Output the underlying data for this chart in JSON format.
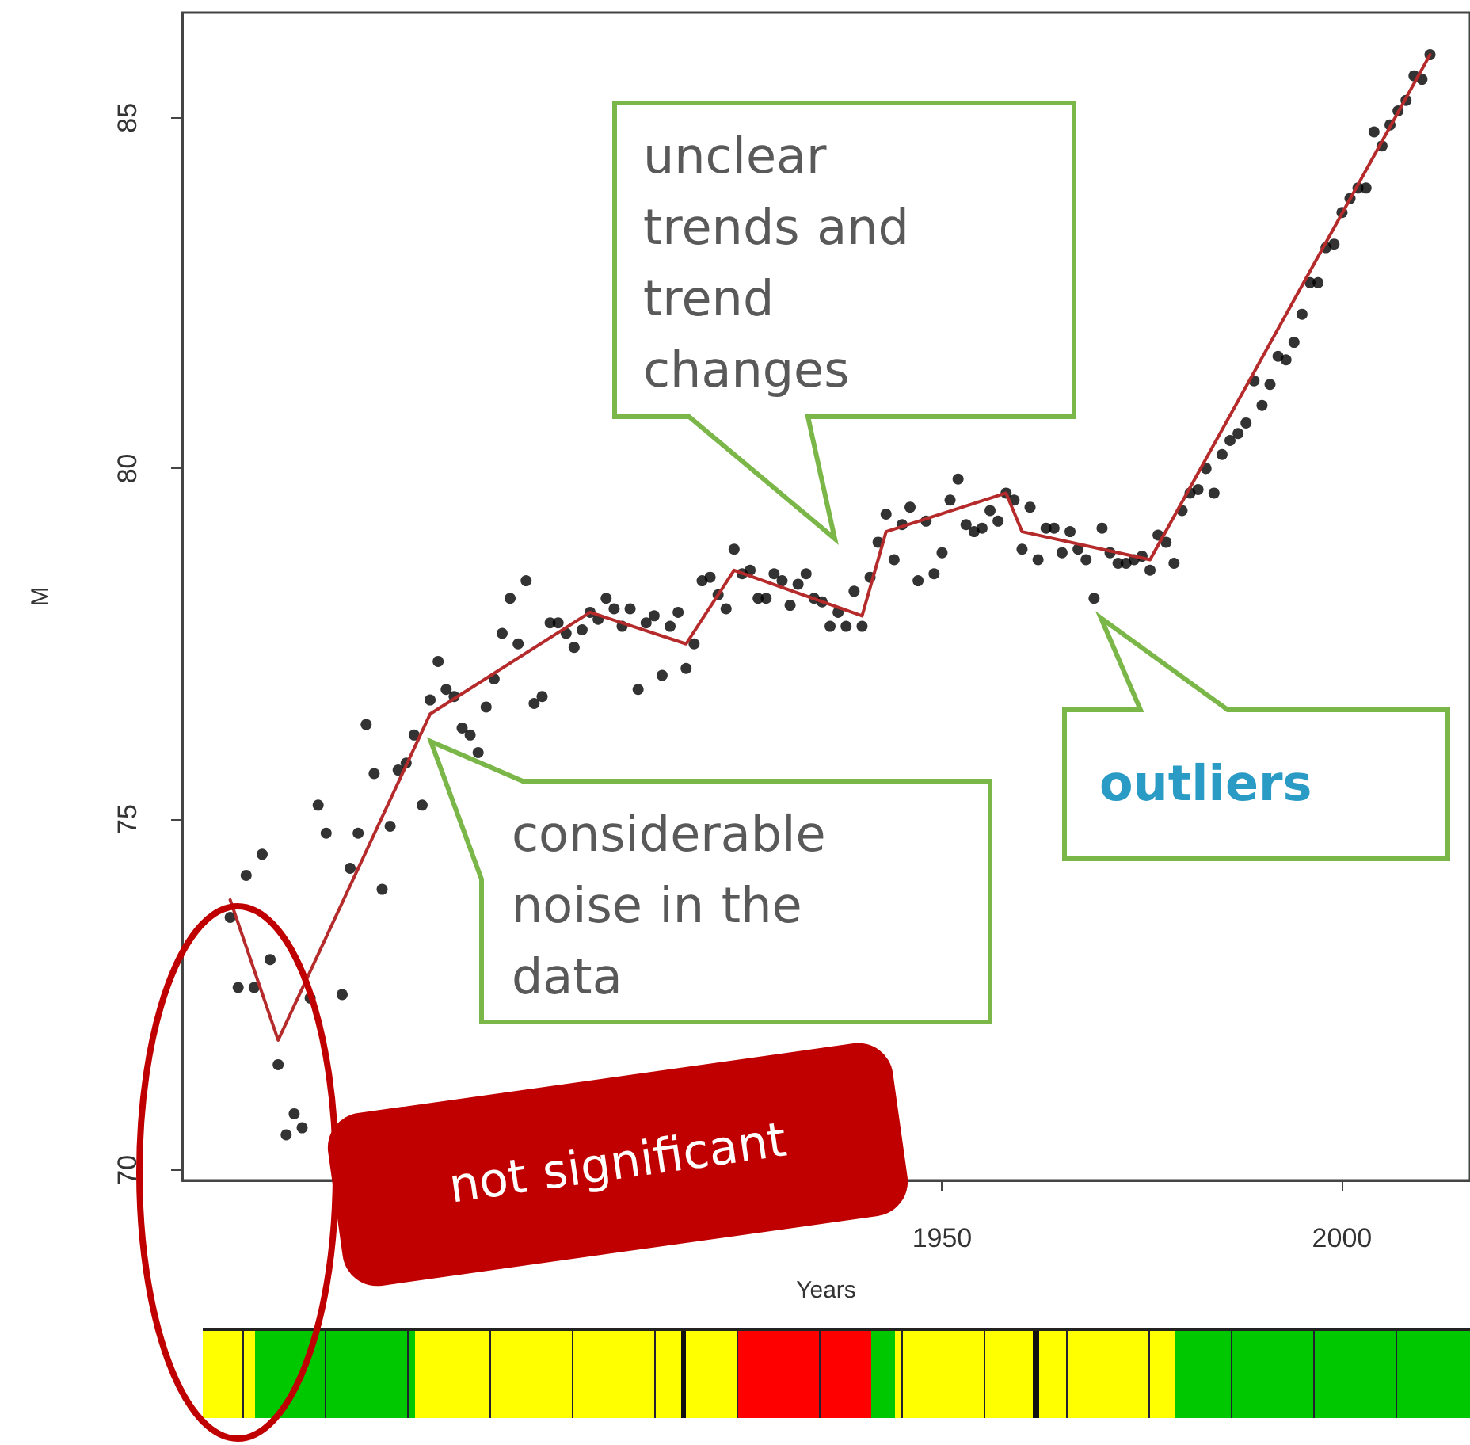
{
  "chart_data": {
    "type": "scatter",
    "xlabel": "Years",
    "ylabel": "M",
    "xlim": [
      1855,
      2016
    ],
    "xticks": [
      1950,
      2000
    ],
    "ylim": [
      69.85,
      86.5
    ],
    "yticks": [
      70,
      75,
      80,
      85
    ],
    "grid": false,
    "marker": "circle",
    "series": [
      {
        "color": "#000000",
        "x": [
          1861,
          1862,
          1863,
          1864,
          1865,
          1866,
          1867,
          1868,
          1869,
          1870,
          1871,
          1872,
          1873,
          1875,
          1876,
          1877,
          1878,
          1879,
          1880,
          1881,
          1882,
          1883,
          1884,
          1885,
          1886,
          1887,
          1888,
          1889,
          1890,
          1891,
          1892,
          1893,
          1894,
          1895,
          1896,
          1897,
          1898,
          1899,
          1900,
          1901,
          1902,
          1903,
          1904,
          1905,
          1906,
          1907,
          1908,
          1909,
          1910,
          1911,
          1912,
          1913,
          1914,
          1915,
          1916,
          1917,
          1918,
          1919,
          1920,
          1921,
          1922,
          1923,
          1924,
          1925,
          1926,
          1927,
          1928,
          1929,
          1930,
          1931,
          1932,
          1933,
          1934,
          1935,
          1936,
          1937,
          1938,
          1939,
          1940,
          1941,
          1942,
          1943,
          1944,
          1945,
          1946,
          1947,
          1948,
          1949,
          1950,
          1951,
          1952,
          1953,
          1954,
          1955,
          1956,
          1957,
          1958,
          1959,
          1960,
          1961,
          1962,
          1963,
          1964,
          1965,
          1966,
          1967,
          1968,
          1969,
          1970,
          1971,
          1972,
          1973,
          1974,
          1975,
          1976,
          1977,
          1978,
          1979,
          1980,
          1981,
          1982,
          1983,
          1984,
          1985,
          1986,
          1987,
          1988,
          1989,
          1990,
          1991,
          1992,
          1993,
          1994,
          1995,
          1996,
          1997,
          1998,
          1999,
          2000,
          2001,
          2002,
          2003,
          2004,
          2005,
          2006,
          2007,
          2008,
          2009,
          2010,
          2011
        ],
        "values": [
          73.6,
          72.6,
          74.2,
          72.6,
          74.5,
          73.0,
          71.5,
          70.5,
          70.8,
          70.6,
          72.45,
          75.2,
          74.8,
          72.5,
          74.3,
          74.8,
          76.35,
          75.65,
          74.0,
          74.9,
          75.7,
          75.8,
          76.2,
          75.2,
          76.7,
          77.25,
          76.85,
          76.75,
          76.3,
          76.2,
          75.95,
          76.6,
          77.0,
          77.65,
          78.15,
          77.5,
          78.4,
          76.65,
          76.75,
          77.8,
          77.8,
          77.65,
          77.45,
          77.7,
          77.95,
          77.85,
          78.15,
          78.0,
          77.75,
          78.0,
          76.85,
          77.8,
          77.9,
          77.05,
          77.75,
          77.95,
          77.15,
          77.5,
          78.4,
          78.45,
          78.2,
          78.0,
          78.85,
          78.5,
          78.55,
          78.15,
          78.15,
          78.5,
          78.4,
          78.05,
          78.35,
          78.5,
          78.15,
          78.1,
          77.75,
          77.95,
          77.75,
          78.25,
          77.75,
          78.45,
          78.95,
          79.35,
          78.7,
          79.2,
          79.45,
          78.4,
          79.25,
          78.5,
          78.8,
          79.55,
          79.85,
          79.2,
          79.1,
          79.15,
          79.4,
          79.25,
          79.65,
          79.55,
          78.85,
          79.45,
          78.7,
          79.15,
          79.15,
          78.8,
          79.1,
          78.85,
          78.7,
          78.15,
          79.15,
          78.8,
          78.65,
          78.65,
          78.7,
          78.75,
          78.55,
          79.05,
          78.95,
          78.65,
          79.4,
          79.65,
          79.7,
          80.0,
          79.65,
          80.2,
          80.4,
          80.5,
          80.65,
          81.25,
          80.9,
          81.2,
          81.6,
          81.55,
          81.8,
          82.2,
          82.65,
          82.65,
          83.15,
          83.2,
          83.65,
          83.85,
          84.0,
          84.0,
          84.8,
          84.6,
          84.9,
          85.1,
          85.25,
          85.6,
          85.55,
          85.9
        ]
      },
      {
        "type": "line",
        "color": "#b52a2a",
        "line_style": "solid",
        "marker": "none",
        "x": [
          1861,
          1867,
          1886,
          1906,
          1918,
          1924,
          1940,
          1943,
          1958,
          1960,
          1976,
          2011
        ],
        "values": [
          73.85,
          71.85,
          76.5,
          77.95,
          77.5,
          78.55,
          77.9,
          79.1,
          79.65,
          79.1,
          78.7,
          85.9
        ]
      }
    ],
    "annotations": [
      "unclear trends and trend changes",
      "considerable noise in the data",
      "outliers",
      "not significant"
    ]
  }
}
